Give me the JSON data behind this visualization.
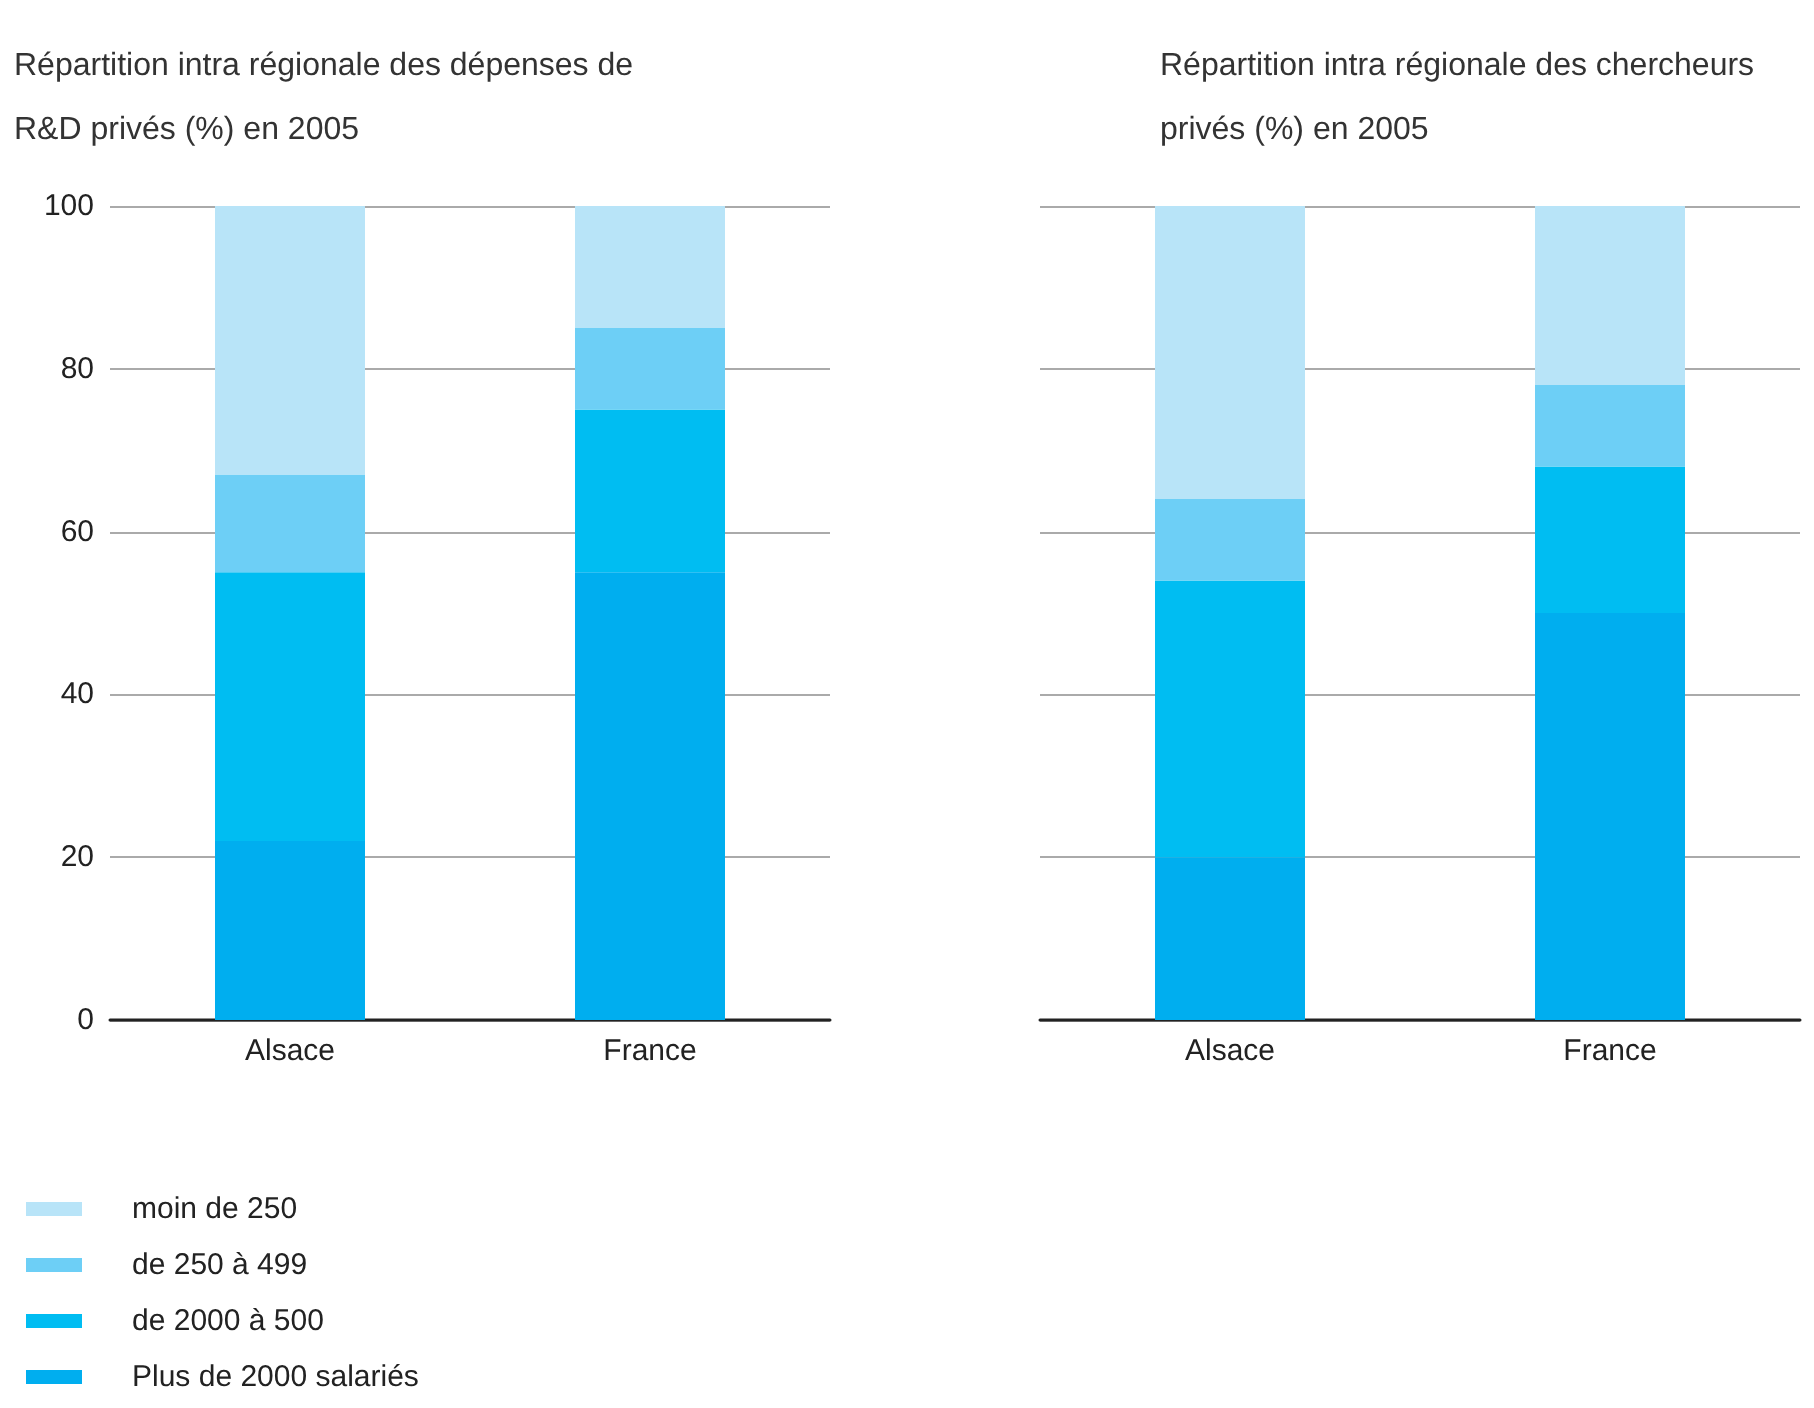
{
  "chart_data": [
    {
      "type": "bar",
      "title": "Répartition intra régionale des dépenses de R&D privés (%) en 2005",
      "categories": [
        "Alsace",
        "France"
      ],
      "stacked": true,
      "ylim": [
        0,
        100
      ],
      "yticks": [
        0,
        20,
        40,
        60,
        80,
        100
      ],
      "grid": "y",
      "legend": "bottom left",
      "series": [
        {
          "name": "Plus de 2000 salariés",
          "color": "#00aeef",
          "values": [
            22,
            55
          ]
        },
        {
          "name": "de 2000 à 500",
          "color": "#00bdf2",
          "values": [
            33,
            20
          ]
        },
        {
          "name": "de 250 à 499",
          "color": "#6dcff6",
          "values": [
            12,
            10
          ]
        },
        {
          "name": "moin de 250",
          "color": "#b8e4f8",
          "values": [
            33,
            15
          ]
        }
      ]
    },
    {
      "type": "bar",
      "title": "Répartition intra régionale des chercheurs privés (%) en 2005",
      "categories": [
        "Alsace",
        "France"
      ],
      "stacked": true,
      "ylim": [
        0,
        100
      ],
      "yticks": [
        0,
        20,
        40,
        60,
        80,
        100
      ],
      "grid": "y",
      "tick_labels": "x",
      "legend": false,
      "series": [
        {
          "color": "#00aeef",
          "values": [
            20,
            50
          ]
        },
        {
          "color": "#00bdf2",
          "values": [
            34,
            18
          ]
        },
        {
          "color": "#6dcff6",
          "values": [
            10,
            10
          ]
        },
        {
          "color": "#b8e4f8",
          "values": [
            36,
            22
          ]
        }
      ]
    }
  ]
}
